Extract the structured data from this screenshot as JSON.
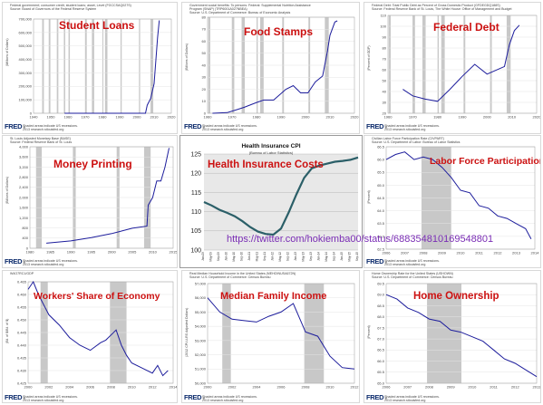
{
  "fred_logo": "FRED",
  "panels": [
    {
      "title": "Student Loans",
      "meta": [
        "Federal government; consumer credit, student loans; asset, Level (FGCCSAQ027S)",
        "Source: Board of Governors of the Federal Reserve System"
      ],
      "ylabel": "(Millions of Dollars)",
      "footer": [
        "Shaded areas indicate US recessions.",
        "2013 research.stlouisfed.org"
      ],
      "yticks": [
        "0",
        "100,000",
        "200,000",
        "300,000",
        "400,000",
        "500,000",
        "600,000",
        "700,000"
      ],
      "xticks": [
        "1940",
        "1950",
        "1960",
        "1970",
        "1980",
        "1990",
        "2000",
        "2010",
        "2020"
      ]
    },
    {
      "title": "Food Stamps",
      "meta": [
        "Government social benefits: To persons: Federal: Supplemental Nutrition Assistance",
        "Program (SNAP) (TRP6001A027NBEA)",
        "Source: U.S. Department of Commerce: Bureau of Economic Analysis"
      ],
      "ylabel": "(Billions of Dollars)",
      "footer": [
        "Shaded areas indicate US recessions.",
        "2013 research.stlouisfed.org"
      ],
      "yticks": [
        "0",
        "10",
        "20",
        "30",
        "40",
        "50",
        "60",
        "70",
        "80"
      ],
      "xticks": [
        "1960",
        "1970",
        "1980",
        "1990",
        "2000",
        "2010",
        "2020"
      ]
    },
    {
      "title": "Federal Debt",
      "meta": [
        "Federal Debt: Total Public Debt as Percent of Gross Domestic Product (GFDEGDQ188S)",
        "Source: Federal Reserve Bank of St. Louis, The White House: Office of Management and Budget"
      ],
      "ylabel": "(Percent of GDP)",
      "footer": [
        "Shaded areas indicate US recessions.",
        "2013 research.stlouisfed.org"
      ],
      "yticks": [
        "20",
        "30",
        "40",
        "50",
        "60",
        "70",
        "80",
        "90",
        "100",
        "110"
      ],
      "xticks": [
        "1960",
        "1970",
        "1980",
        "1990",
        "2000",
        "2010",
        "2020"
      ]
    },
    {
      "title": "Money Printing",
      "meta": [
        "St. Louis Adjusted Monetary Base (BASE)",
        "Source: Federal Reserve Bank of St. Louis"
      ],
      "ylabel": "(Billions of Dollars)",
      "footer": [
        "Shaded areas indicate US recessions.",
        "2013 research.stlouisfed.org"
      ],
      "yticks": [
        "0",
        "400",
        "800",
        "1,200",
        "1,600",
        "2,000",
        "2,400",
        "2,800",
        "3,200",
        "3,600",
        "4,000"
      ],
      "xticks": [
        "1980",
        "1985",
        "1990",
        "1995",
        "2000",
        "2005",
        "2010",
        "2015"
      ]
    },
    {
      "title": "Health Insurance Costs",
      "chart_title": "Health Insurance CPI",
      "chart_subtitle": "(Bureau of Labor Statistics)",
      "url": "https://twitter.com/hokiemba00/status/688354810169548801",
      "yticks": [
        "100",
        "105",
        "110",
        "115",
        "120",
        "125"
      ],
      "xticks": [
        "Jan-09",
        "May-09",
        "Sep-09",
        "Jan-10",
        "May-10",
        "Sep-10",
        "Jan-11",
        "May-11",
        "Sep-11",
        "Jan-12",
        "May-12",
        "Sep-12",
        "Jan-13",
        "May-13",
        "Sep-13",
        "Jan-14",
        "May-14",
        "Sep-14",
        "Jan-15",
        "May-15",
        "Sep-15"
      ]
    },
    {
      "title": "Labor Force Participation",
      "meta": [
        "Civilian Labor Force Participation Rate (CIVPART)",
        "Source: U.S. Department of Labor: Bureau of Labor Statistics"
      ],
      "ylabel": "(Percent)",
      "footer": [
        "Shaded areas indicate US recessions.",
        "2013 research.stlouisfed.org"
      ],
      "yticks": [
        "62.5",
        "63.0",
        "63.5",
        "64.0",
        "64.5",
        "65.0",
        "65.5",
        "66.0",
        "66.5"
      ],
      "xticks": [
        "2006",
        "2007",
        "2008",
        "2009",
        "2010",
        "2011",
        "2012",
        "2013",
        "2014"
      ]
    },
    {
      "title": "Workers' Share of Economy",
      "meta": [
        "W4O7RC1/GDP"
      ],
      "ylabel": "(Bil. of $/Bil. of $)",
      "footer": [
        "Shaded areas indicate US recessions.",
        "2013 research.stlouisfed.org"
      ],
      "yticks": [
        "0.425",
        "0.430",
        "0.435",
        "0.440",
        "0.445",
        "0.450",
        "0.455",
        "0.460",
        "0.465"
      ],
      "xticks": [
        "2000",
        "2002",
        "2004",
        "2006",
        "2008",
        "2010",
        "2012",
        "2014"
      ]
    },
    {
      "title": "Median Family Income",
      "meta": [
        "Real Median Household Income in the United States (MEHOINUSA672N)",
        "Source: U.S. Department of Commerce: Census Bureau"
      ],
      "ylabel": "(2012 CPI-U-RS Adjusted Dollars)",
      "footer": [
        "Shaded areas indicate US recessions.",
        "2013 research.stlouisfed.org"
      ],
      "yticks": [
        "50,000",
        "51,000",
        "52,000",
        "53,000",
        "54,000",
        "55,000",
        "56,000",
        "57,000"
      ],
      "xticks": [
        "2000",
        "2002",
        "2004",
        "2006",
        "2008",
        "2010",
        "2012"
      ]
    },
    {
      "title": "Home Ownership",
      "meta": [
        "Home Ownership Rate for the United States (USHOWN)",
        "Source: U.S. Department of Commerce: Census Bureau"
      ],
      "ylabel": "(Percent)",
      "footer": [
        "Shaded areas indicate US recessions.",
        "2013 research.stlouisfed.org"
      ],
      "yticks": [
        "65.0",
        "65.5",
        "66.0",
        "66.5",
        "67.0",
        "67.5",
        "68.0",
        "68.5",
        "69.0",
        "69.5"
      ],
      "xticks": [
        "2006",
        "2007",
        "2008",
        "2009",
        "2010",
        "2011",
        "2012",
        "2013"
      ]
    }
  ],
  "colors": {
    "line": "#1d1d9c",
    "recession": "#c8c8c8",
    "title_red": "#cc1111",
    "hi_line": "#2b5f68",
    "hi_plot": "#e8e8e8"
  },
  "chart_data": [
    {
      "type": "line",
      "title": "Student Loans",
      "ylabel": "(Millions of Dollars)",
      "xlim": [
        1940,
        2020
      ],
      "ylim": [
        0,
        700000
      ],
      "x": [
        1958,
        1970,
        1980,
        1990,
        2000,
        2005,
        2006,
        2008,
        2010,
        2012,
        2013
      ],
      "y": [
        0,
        0,
        0,
        0,
        0,
        0,
        60000,
        110000,
        220000,
        560000,
        690000
      ]
    },
    {
      "type": "line",
      "title": "Food Stamps",
      "ylabel": "(Billions of Dollars)",
      "xlim": [
        1960,
        2020
      ],
      "ylim": [
        0,
        80
      ],
      "x": [
        1962,
        1968,
        1972,
        1975,
        1980,
        1983,
        1987,
        1992,
        1995,
        1998,
        2001,
        2004,
        2007,
        2009,
        2010,
        2012,
        2013
      ],
      "y": [
        0,
        0.5,
        3,
        5,
        9,
        11,
        11,
        20,
        23,
        17,
        17,
        26,
        31,
        52,
        65,
        76,
        77
      ]
    },
    {
      "type": "line",
      "title": "Federal Debt",
      "ylabel": "(Percent of GDP)",
      "xlim": [
        1960,
        2020
      ],
      "ylim": [
        20,
        110
      ],
      "x": [
        1966,
        1970,
        1975,
        1980,
        1985,
        1990,
        1995,
        2000,
        2005,
        2007,
        2009,
        2011,
        2013
      ],
      "y": [
        42,
        36,
        33,
        31,
        42,
        54,
        65,
        56,
        61,
        63,
        83,
        96,
        101
      ]
    },
    {
      "type": "line",
      "title": "Money Printing",
      "ylabel": "(Billions of Dollars)",
      "xlim": [
        1980,
        2015
      ],
      "ylim": [
        0,
        4000
      ],
      "x": [
        1984,
        1990,
        1995,
        2000,
        2005,
        2008.6,
        2008.9,
        2010,
        2011,
        2012,
        2013,
        2014
      ],
      "y": [
        200,
        290,
        420,
        580,
        790,
        870,
        1700,
        2000,
        2650,
        2650,
        3200,
        3950
      ]
    },
    {
      "type": "line",
      "title": "Health Insurance CPI",
      "ylim": [
        100,
        125
      ],
      "categories": [
        "Jan-09",
        "May-09",
        "Sep-09",
        "Jan-10",
        "May-10",
        "Sep-10",
        "Jan-11",
        "May-11",
        "Sep-11",
        "Jan-12",
        "May-12",
        "Sep-12",
        "Jan-13",
        "May-13",
        "Sep-13",
        "Jan-14",
        "May-14",
        "Sep-14",
        "Jan-15",
        "May-15",
        "Sep-15"
      ],
      "values": [
        112.5,
        111.6,
        110.5,
        109.7,
        108.8,
        107.5,
        106.0,
        104.8,
        104.2,
        104.0,
        105.6,
        109.8,
        114.5,
        118.8,
        121.3,
        122.0,
        122.5,
        123.0,
        123.2,
        123.5,
        124.1
      ]
    },
    {
      "type": "line",
      "title": "Labor Force Participation",
      "ylabel": "(Percent)",
      "xlim": [
        2006,
        2014
      ],
      "ylim": [
        62.5,
        66.5
      ],
      "x": [
        2006.0,
        2006.5,
        2007.0,
        2007.5,
        2008.0,
        2008.5,
        2009.0,
        2009.5,
        2010.0,
        2010.5,
        2011.0,
        2011.5,
        2012.0,
        2012.5,
        2013.0,
        2013.5,
        2013.8
      ],
      "y": [
        66.0,
        66.2,
        66.3,
        66.0,
        66.1,
        66.0,
        65.7,
        65.3,
        64.8,
        64.7,
        64.2,
        64.1,
        63.8,
        63.7,
        63.5,
        63.3,
        62.9
      ]
    },
    {
      "type": "line",
      "title": "Workers' Share of Economy",
      "ylabel": "(Bil. of $/Bil. of $)",
      "xlim": [
        2000,
        2014
      ],
      "ylim": [
        0.425,
        0.465
      ],
      "x": [
        2000.0,
        2000.5,
        2001.0,
        2001.5,
        2002.0,
        2003.0,
        2004.0,
        2005.0,
        2006.0,
        2007.0,
        2007.5,
        2008.0,
        2008.5,
        2009.0,
        2009.5,
        2010.0,
        2011.0,
        2012.0,
        2012.5,
        2013.0,
        2013.5
      ],
      "y": [
        0.462,
        0.465,
        0.46,
        0.456,
        0.452,
        0.448,
        0.443,
        0.44,
        0.438,
        0.441,
        0.442,
        0.444,
        0.446,
        0.44,
        0.436,
        0.433,
        0.431,
        0.429,
        0.432,
        0.428,
        0.43
      ]
    },
    {
      "type": "line",
      "title": "Median Family Income",
      "ylabel": "(2012 CPI-U-RS Adjusted Dollars)",
      "xlim": [
        2000,
        2012
      ],
      "ylim": [
        50000,
        57000
      ],
      "x": [
        2000,
        2001,
        2002,
        2003,
        2004,
        2005,
        2006,
        2007,
        2008,
        2009,
        2010,
        2011,
        2012
      ],
      "y": [
        56000,
        55000,
        54500,
        54400,
        54300,
        54700,
        55000,
        55600,
        53600,
        53300,
        51900,
        51100,
        51000
      ]
    },
    {
      "type": "line",
      "title": "Home Ownership",
      "ylabel": "(Percent)",
      "xlim": [
        2006,
        2013
      ],
      "ylim": [
        65.0,
        69.5
      ],
      "x": [
        2006.0,
        2006.5,
        2007.0,
        2007.5,
        2008.0,
        2008.5,
        2009.0,
        2009.5,
        2010.0,
        2010.5,
        2011.0,
        2011.5,
        2012.0,
        2012.5,
        2013.0
      ],
      "y": [
        69.0,
        68.8,
        68.4,
        68.2,
        67.9,
        67.8,
        67.4,
        67.3,
        67.1,
        66.9,
        66.5,
        66.1,
        65.9,
        65.6,
        65.3
      ]
    }
  ]
}
